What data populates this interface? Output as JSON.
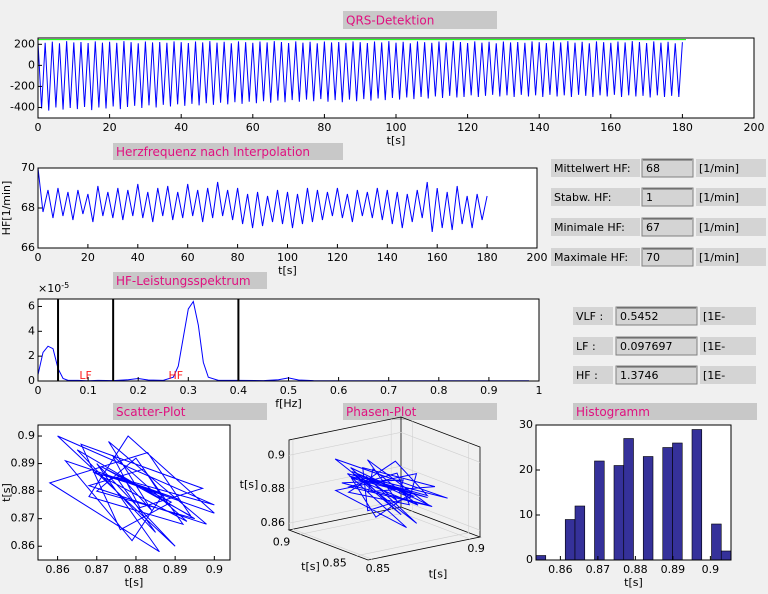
{
  "chart_data": [
    {
      "type": "line",
      "title": "QRS-Detektion",
      "xlabel": "t[s]",
      "xlim": [
        0,
        200
      ],
      "ylim": [
        -500,
        260
      ],
      "xticks": [
        0,
        20,
        40,
        60,
        80,
        100,
        120,
        140,
        160,
        180,
        200
      ],
      "yticks": [
        -400,
        -200,
        0,
        200
      ],
      "series": [
        {
          "color": "#0000ff",
          "x": [
            0,
            1,
            2,
            3,
            4,
            5,
            6,
            7,
            8,
            9,
            10,
            11,
            12,
            13,
            14,
            15,
            16,
            17,
            18,
            19,
            20,
            21,
            22,
            23,
            24,
            25,
            26,
            27,
            28,
            29,
            30,
            31,
            32,
            33,
            34,
            35,
            36,
            37,
            38,
            39,
            40,
            41,
            42,
            43,
            44,
            45,
            46,
            47,
            48,
            49,
            50,
            51,
            52,
            53,
            54,
            55,
            56,
            57,
            58,
            59,
            60,
            61,
            62,
            63,
            64,
            65,
            66,
            67,
            68,
            69,
            70,
            71,
            72,
            73,
            74,
            75,
            76,
            77,
            78,
            79,
            80,
            81,
            82,
            83,
            84,
            85,
            86,
            87,
            88,
            89,
            90,
            91,
            92,
            93,
            94,
            95,
            96,
            97,
            98,
            99,
            100,
            101,
            102,
            103,
            104,
            105,
            106,
            107,
            108,
            109,
            110,
            111,
            112,
            113,
            114,
            115,
            116,
            117,
            118,
            119,
            120,
            121,
            122,
            123,
            124,
            125,
            126,
            127,
            128,
            129,
            130,
            131,
            132,
            133,
            134,
            135,
            136,
            137,
            138,
            139,
            140,
            141,
            142,
            143,
            144,
            145,
            146,
            147,
            148,
            149,
            150,
            151,
            152,
            153,
            154,
            155,
            156,
            157,
            158,
            159,
            160,
            161,
            162,
            163,
            164,
            165,
            166,
            167,
            168,
            169,
            170,
            171,
            172,
            173,
            174,
            175,
            176,
            177,
            178,
            179,
            180
          ],
          "values": [
            220,
            -410,
            215,
            -430,
            225,
            -400,
            210,
            -420,
            230,
            -405,
            218,
            -415,
            222,
            -395,
            212,
            -425,
            228,
            -400,
            216,
            -410,
            224,
            -390,
            214,
            -415,
            230,
            -395,
            220,
            -385,
            210,
            -405,
            226,
            -380,
            218,
            -400,
            222,
            -375,
            214,
            -390,
            228,
            -370,
            220,
            -385,
            212,
            -365,
            226,
            -380,
            218,
            -360,
            230,
            -375,
            216,
            -355,
            224,
            -370,
            210,
            -350,
            228,
            -365,
            220,
            -345,
            214,
            -360,
            226,
            -340,
            218,
            -355,
            230,
            -335,
            222,
            -350,
            212,
            -330,
            228,
            -345,
            216,
            -325,
            224,
            -340,
            210,
            -320,
            226,
            -345,
            218,
            -330,
            222,
            -350,
            214,
            -325,
            228,
            -340,
            220,
            -320,
            212,
            -335,
            226,
            -315,
            218,
            -330,
            230,
            -310,
            216,
            -325,
            224,
            -305,
            210,
            -320,
            228,
            -300,
            220,
            -315,
            214,
            -295,
            226,
            -310,
            218,
            -290,
            230,
            -305,
            222,
            -300,
            212,
            -285,
            228,
            -300,
            216,
            -290,
            224,
            -280,
            210,
            -295,
            226,
            -285,
            218,
            -300,
            222,
            -280,
            214,
            -295,
            228,
            -285,
            220,
            -300,
            212,
            -280,
            226,
            -295,
            218,
            -285,
            230,
            -300,
            216,
            -280,
            224,
            -290,
            210,
            -300,
            228,
            -285,
            220,
            -295,
            214,
            -280,
            226,
            -300,
            218,
            -285,
            230,
            -295,
            222,
            -290,
            212,
            -305,
            228,
            -285,
            216,
            -300,
            224,
            -290,
            210,
            -300,
            220
          ]
        },
        {
          "color": "#00ff00",
          "x": [
            0,
            181
          ],
          "values": [
            245,
            245
          ]
        }
      ]
    },
    {
      "type": "line",
      "title": "Herzfrequenz nach Interpolation",
      "xlabel": "t[s]",
      "ylabel": "HF[1/min]",
      "xlim": [
        0,
        200
      ],
      "ylim": [
        66,
        70
      ],
      "xticks": [
        0,
        20,
        40,
        60,
        80,
        100,
        120,
        140,
        160,
        180,
        200
      ],
      "yticks": [
        66,
        68,
        70
      ],
      "series": [
        {
          "color": "#0000ff",
          "x": [
            0,
            2,
            4,
            6,
            8,
            10,
            12,
            14,
            16,
            18,
            20,
            22,
            24,
            26,
            28,
            30,
            32,
            34,
            36,
            38,
            40,
            42,
            44,
            46,
            48,
            50,
            52,
            54,
            56,
            58,
            60,
            62,
            64,
            66,
            68,
            70,
            72,
            74,
            76,
            78,
            80,
            82,
            84,
            86,
            88,
            90,
            92,
            94,
            96,
            98,
            100,
            102,
            104,
            106,
            108,
            110,
            112,
            114,
            116,
            118,
            120,
            122,
            124,
            126,
            128,
            130,
            132,
            134,
            136,
            138,
            140,
            142,
            144,
            146,
            148,
            150,
            152,
            154,
            156,
            158,
            160,
            162,
            164,
            166,
            168,
            170,
            172,
            174,
            176,
            178,
            180
          ],
          "values": [
            70,
            67.8,
            68.9,
            67.5,
            69.0,
            67.6,
            68.8,
            67.4,
            68.9,
            67.7,
            68.7,
            67.3,
            69.1,
            67.6,
            68.8,
            67.5,
            69.0,
            67.4,
            68.9,
            67.6,
            69.2,
            67.5,
            68.8,
            67.3,
            69.0,
            67.6,
            69.1,
            67.4,
            68.8,
            67.5,
            69.2,
            67.6,
            68.9,
            67.3,
            69.0,
            67.5,
            69.3,
            67.6,
            68.9,
            67.4,
            69.0,
            67.2,
            68.7,
            67.0,
            68.8,
            67.1,
            68.6,
            67.3,
            68.9,
            67.2,
            68.8,
            67.0,
            68.7,
            67.2,
            69.0,
            67.3,
            68.9,
            67.4,
            68.8,
            67.6,
            69.0,
            67.5,
            68.7,
            67.3,
            68.9,
            67.6,
            68.8,
            67.5,
            69.0,
            67.4,
            68.9,
            67.2,
            68.8,
            67.0,
            68.7,
            67.3,
            68.9,
            67.5,
            69.3,
            66.8,
            69.0,
            67.0,
            68.8,
            66.9,
            69.1,
            67.2,
            68.6,
            67.0,
            68.7,
            67.4,
            68.6
          ]
        }
      ]
    },
    {
      "type": "line",
      "title": "HF-Leistungsspektrum",
      "xlabel": "f[Hz]",
      "y_multiplier": "×10",
      "y_exponent": "-5",
      "xlim": [
        0,
        1
      ],
      "ylim": [
        0,
        6.6
      ],
      "xticks": [
        0,
        0.1,
        0.2,
        0.3,
        0.4,
        0.5,
        0.6,
        0.7,
        0.8,
        0.9,
        1
      ],
      "yticks": [
        0,
        2,
        4,
        6
      ],
      "bands": [
        0.04,
        0.15,
        0.4
      ],
      "annotations": [
        "LF",
        "HF"
      ],
      "series": [
        {
          "color": "#0000ff",
          "x": [
            0,
            0.01,
            0.02,
            0.03,
            0.04,
            0.05,
            0.06,
            0.08,
            0.1,
            0.12,
            0.15,
            0.18,
            0.2,
            0.22,
            0.25,
            0.27,
            0.28,
            0.29,
            0.3,
            0.31,
            0.32,
            0.33,
            0.34,
            0.36,
            0.4,
            0.45,
            0.48,
            0.5,
            0.52,
            0.55,
            0.6,
            0.7,
            0.8,
            0.9,
            0.98
          ],
          "values": [
            0.5,
            2.3,
            2.8,
            2.6,
            1.0,
            0.2,
            0.05,
            0.05,
            0.02,
            0.05,
            0.03,
            0.1,
            0.2,
            0.08,
            0.05,
            0.3,
            1.2,
            3.5,
            5.8,
            6.4,
            4.5,
            1.5,
            0.3,
            0.05,
            0.05,
            0.03,
            0.1,
            0.25,
            0.08,
            0.03,
            0.02,
            0.02,
            0.02,
            0.02,
            0.02
          ]
        }
      ]
    },
    {
      "type": "line",
      "title": "Scatter-Plot",
      "xlabel": "t[s]",
      "ylabel": "t[s]",
      "xlim": [
        0.855,
        0.904
      ],
      "ylim": [
        0.855,
        0.904
      ],
      "xticks": [
        0.86,
        0.87,
        0.88,
        0.89,
        0.9
      ],
      "yticks": [
        0.86,
        0.87,
        0.88,
        0.89,
        0.9
      ],
      "series": [
        {
          "color": "#0000ff",
          "x": [
            0.88,
            0.87,
            0.89,
            0.86,
            0.9,
            0.875,
            0.885,
            0.865,
            0.895,
            0.87,
            0.88,
            0.892,
            0.868,
            0.878,
            0.9,
            0.872,
            0.886,
            0.858,
            0.883,
            0.894,
            0.871,
            0.889,
            0.876,
            0.866,
            0.897,
            0.881,
            0.874,
            0.893,
            0.869,
            0.887,
            0.879,
            0.862,
            0.891,
            0.877,
            0.884,
            0.873,
            0.898,
            0.868,
            0.882,
            0.888
          ],
          "values": [
            0.87,
            0.89,
            0.86,
            0.9,
            0.875,
            0.885,
            0.865,
            0.895,
            0.87,
            0.88,
            0.892,
            0.868,
            0.878,
            0.9,
            0.872,
            0.886,
            0.858,
            0.883,
            0.894,
            0.871,
            0.889,
            0.876,
            0.866,
            0.897,
            0.881,
            0.874,
            0.893,
            0.869,
            0.887,
            0.879,
            0.862,
            0.891,
            0.877,
            0.884,
            0.873,
            0.898,
            0.868,
            0.882,
            0.888,
            0.875
          ]
        }
      ]
    },
    {
      "type": "line3d",
      "title": "Phasen-Plot",
      "xlabel": "t[s]",
      "ylabel": "t[s]",
      "zlabel": "t[s]",
      "xlim": [
        0.84,
        0.91
      ],
      "ylim": [
        0.848,
        0.905
      ],
      "zlim": [
        0.856,
        0.909
      ],
      "xticks": [
        0.85,
        0.9
      ],
      "yticks": [
        0.85,
        0.9
      ],
      "zticks": [
        0.86,
        0.88,
        0.9
      ],
      "color": "#0000ff",
      "x": [
        0.88,
        0.87,
        0.89,
        0.86,
        0.9,
        0.875,
        0.885,
        0.865,
        0.895,
        0.87,
        0.88,
        0.892,
        0.868,
        0.878,
        0.9,
        0.872,
        0.886,
        0.858,
        0.883,
        0.894,
        0.871,
        0.889,
        0.876,
        0.866,
        0.897,
        0.881,
        0.874,
        0.893,
        0.869,
        0.887,
        0.879,
        0.862,
        0.891,
        0.877,
        0.884,
        0.873,
        0.898,
        0.868,
        0.882
      ],
      "y": [
        0.87,
        0.89,
        0.86,
        0.9,
        0.875,
        0.885,
        0.865,
        0.895,
        0.87,
        0.88,
        0.892,
        0.868,
        0.878,
        0.9,
        0.872,
        0.886,
        0.858,
        0.883,
        0.894,
        0.871,
        0.889,
        0.876,
        0.866,
        0.897,
        0.881,
        0.874,
        0.893,
        0.869,
        0.887,
        0.879,
        0.862,
        0.891,
        0.877,
        0.884,
        0.873,
        0.898,
        0.868,
        0.882,
        0.888
      ],
      "z": [
        0.89,
        0.86,
        0.9,
        0.875,
        0.885,
        0.865,
        0.895,
        0.87,
        0.88,
        0.892,
        0.868,
        0.878,
        0.9,
        0.872,
        0.886,
        0.858,
        0.883,
        0.894,
        0.871,
        0.889,
        0.876,
        0.866,
        0.897,
        0.881,
        0.874,
        0.893,
        0.869,
        0.887,
        0.879,
        0.862,
        0.891,
        0.877,
        0.884,
        0.873,
        0.898,
        0.868,
        0.882,
        0.888,
        0.875
      ]
    },
    {
      "type": "histogram",
      "title": "Histogramm",
      "xlabel": "t[s]",
      "color": "#35319a",
      "xlim": [
        0.8535,
        0.9055
      ],
      "ylim": [
        0,
        30
      ],
      "xticks": [
        0.86,
        0.87,
        0.88,
        0.89,
        0.9
      ],
      "yticks": [
        0,
        10,
        20,
        30
      ],
      "bins": [
        0.8535,
        0.8561,
        0.8587,
        0.8613,
        0.8639,
        0.8665,
        0.8691,
        0.8717,
        0.8743,
        0.8769,
        0.8795,
        0.8821,
        0.8847,
        0.8873,
        0.8899,
        0.8925,
        0.8951,
        0.8977,
        0.9003,
        0.9029,
        0.9055
      ],
      "values": [
        1,
        0,
        0,
        9,
        12,
        0,
        22,
        0,
        21,
        27,
        0,
        23,
        0,
        25,
        26,
        0,
        29,
        0,
        8,
        2
      ]
    }
  ],
  "hr_fields": [
    {
      "label": "Mittelwert HF:",
      "value": 68,
      "unit": "[1/min]"
    },
    {
      "label": "Stabw. HF:",
      "value": 1,
      "unit": "[1/min]"
    },
    {
      "label": "Minimale HF:",
      "value": 67,
      "unit": "[1/min]"
    },
    {
      "label": "Maximale HF:",
      "value": 70,
      "unit": "[1/min]"
    }
  ],
  "spectrum_fields": [
    {
      "label": "VLF :",
      "value": 0.5452,
      "unit": "[1E-"
    },
    {
      "label": "LF :",
      "value": 0.097697,
      "unit": "[1E-"
    },
    {
      "label": "HF :",
      "value": 1.3746,
      "unit": "[1E-"
    }
  ]
}
